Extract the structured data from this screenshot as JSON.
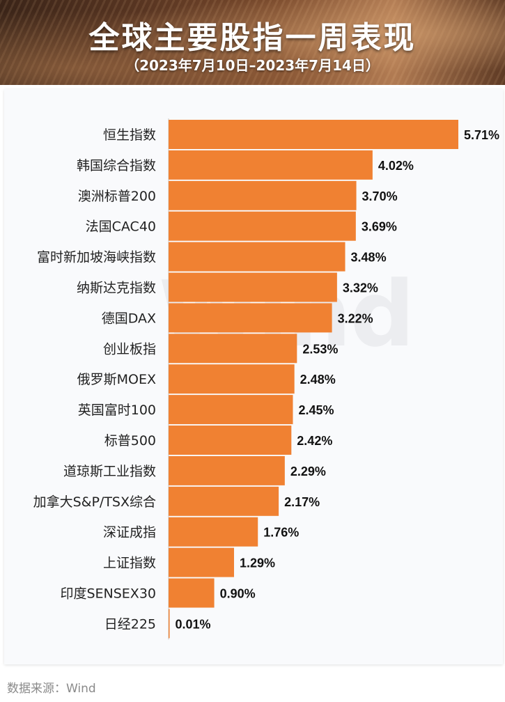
{
  "header": {
    "title": "全球主要股指一周表现",
    "subtitle": "（2023年7月10日–2023年7月14日）"
  },
  "watermark": "Wind",
  "source": "数据来源：Wind",
  "colors": {
    "bar": "#f08132",
    "label": "#111111",
    "category": "#222222"
  },
  "chart_data": {
    "type": "bar",
    "orientation": "horizontal",
    "categories": [
      "恒生指数",
      "韩国综合指数",
      "澳洲标普200",
      "法国CAC40",
      "富时新加坡海峡指数",
      "纳斯达克指数",
      "德国DAX",
      "创业板指",
      "俄罗斯MOEX",
      "英国富时100",
      "标普500",
      "道琼斯工业指数",
      "加拿大S&P/TSX综合",
      "深证成指",
      "上证指数",
      "印度SENSEX30",
      "日经225"
    ],
    "values": [
      5.71,
      4.02,
      3.7,
      3.69,
      3.48,
      3.32,
      3.22,
      2.53,
      2.48,
      2.45,
      2.42,
      2.29,
      2.17,
      1.76,
      1.29,
      0.9,
      0.01
    ],
    "value_labels": [
      "5.71%",
      "4.02%",
      "3.70%",
      "3.69%",
      "3.48%",
      "3.32%",
      "3.22%",
      "2.53%",
      "2.48%",
      "2.45%",
      "2.42%",
      "2.29%",
      "2.17%",
      "1.76%",
      "1.29%",
      "0.90%",
      "0.01%"
    ],
    "unit": "%",
    "xlim": [
      0,
      5.71
    ],
    "grid": false,
    "legend": "none"
  }
}
